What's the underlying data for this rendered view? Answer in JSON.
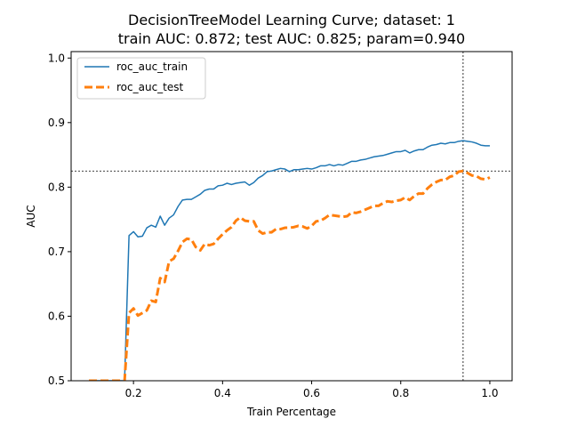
{
  "chart_data": {
    "type": "line",
    "title": [
      "DecisionTreeModel Learning Curve; dataset: 1",
      "train AUC: 0.872; test AUC: 0.825; param=0.940"
    ],
    "xlabel": "Train Percentage",
    "ylabel": "AUC",
    "xlim": [
      0.06,
      1.05
    ],
    "ylim": [
      0.5,
      1.01
    ],
    "xticks": [
      0.2,
      0.4,
      0.6,
      0.8,
      1.0
    ],
    "xtick_labels": [
      "0.2",
      "0.4",
      "0.6",
      "0.8",
      "1.0"
    ],
    "yticks": [
      0.5,
      0.6,
      0.7,
      0.8,
      0.9,
      1.0
    ],
    "ytick_labels": [
      "0.5",
      "0.6",
      "0.7",
      "0.8",
      "0.9",
      "1.0"
    ],
    "legend_position": "top-left",
    "reference_lines": {
      "vertical_x": 0.94,
      "horizontal_y": 0.825
    },
    "series": [
      {
        "name": "roc_auc_train",
        "color": "#1f77b4",
        "style": "solid",
        "points": [
          [
            0.1,
            0.5
          ],
          [
            0.11,
            0.5
          ],
          [
            0.12,
            0.5
          ],
          [
            0.13,
            0.5
          ],
          [
            0.14,
            0.5
          ],
          [
            0.15,
            0.5
          ],
          [
            0.16,
            0.5
          ],
          [
            0.17,
            0.5
          ],
          [
            0.18,
            0.5
          ],
          [
            0.19,
            0.725
          ],
          [
            0.2,
            0.731
          ],
          [
            0.21,
            0.723
          ],
          [
            0.22,
            0.724
          ],
          [
            0.23,
            0.737
          ],
          [
            0.24,
            0.741
          ],
          [
            0.25,
            0.738
          ],
          [
            0.26,
            0.755
          ],
          [
            0.27,
            0.741
          ],
          [
            0.28,
            0.752
          ],
          [
            0.29,
            0.757
          ],
          [
            0.3,
            0.77
          ],
          [
            0.31,
            0.78
          ],
          [
            0.32,
            0.781
          ],
          [
            0.33,
            0.781
          ],
          [
            0.34,
            0.785
          ],
          [
            0.35,
            0.789
          ],
          [
            0.36,
            0.795
          ],
          [
            0.37,
            0.797
          ],
          [
            0.38,
            0.797
          ],
          [
            0.39,
            0.802
          ],
          [
            0.4,
            0.803
          ],
          [
            0.41,
            0.806
          ],
          [
            0.42,
            0.804
          ],
          [
            0.43,
            0.806
          ],
          [
            0.44,
            0.807
          ],
          [
            0.45,
            0.808
          ],
          [
            0.46,
            0.803
          ],
          [
            0.47,
            0.807
          ],
          [
            0.48,
            0.814
          ],
          [
            0.49,
            0.818
          ],
          [
            0.5,
            0.824
          ],
          [
            0.51,
            0.825
          ],
          [
            0.52,
            0.827
          ],
          [
            0.53,
            0.829
          ],
          [
            0.54,
            0.828
          ],
          [
            0.55,
            0.824
          ],
          [
            0.56,
            0.827
          ],
          [
            0.57,
            0.827
          ],
          [
            0.58,
            0.828
          ],
          [
            0.59,
            0.829
          ],
          [
            0.6,
            0.828
          ],
          [
            0.61,
            0.83
          ],
          [
            0.62,
            0.833
          ],
          [
            0.63,
            0.833
          ],
          [
            0.64,
            0.835
          ],
          [
            0.65,
            0.833
          ],
          [
            0.66,
            0.835
          ],
          [
            0.67,
            0.834
          ],
          [
            0.68,
            0.837
          ],
          [
            0.69,
            0.84
          ],
          [
            0.7,
            0.84
          ],
          [
            0.71,
            0.842
          ],
          [
            0.72,
            0.843
          ],
          [
            0.73,
            0.845
          ],
          [
            0.74,
            0.847
          ],
          [
            0.75,
            0.848
          ],
          [
            0.76,
            0.849
          ],
          [
            0.77,
            0.851
          ],
          [
            0.78,
            0.853
          ],
          [
            0.79,
            0.855
          ],
          [
            0.8,
            0.855
          ],
          [
            0.81,
            0.857
          ],
          [
            0.82,
            0.853
          ],
          [
            0.83,
            0.856
          ],
          [
            0.84,
            0.858
          ],
          [
            0.85,
            0.858
          ],
          [
            0.86,
            0.862
          ],
          [
            0.87,
            0.865
          ],
          [
            0.88,
            0.866
          ],
          [
            0.89,
            0.868
          ],
          [
            0.9,
            0.867
          ],
          [
            0.91,
            0.869
          ],
          [
            0.92,
            0.869
          ],
          [
            0.93,
            0.871
          ],
          [
            0.94,
            0.872
          ],
          [
            0.95,
            0.871
          ],
          [
            0.96,
            0.87
          ],
          [
            0.97,
            0.868
          ],
          [
            0.98,
            0.865
          ],
          [
            0.99,
            0.864
          ],
          [
            1.0,
            0.864
          ]
        ]
      },
      {
        "name": "roc_auc_test",
        "color": "#ff7f0e",
        "style": "dashed",
        "points": [
          [
            0.1,
            0.5
          ],
          [
            0.11,
            0.5
          ],
          [
            0.12,
            0.5
          ],
          [
            0.13,
            0.5
          ],
          [
            0.14,
            0.5
          ],
          [
            0.15,
            0.5
          ],
          [
            0.16,
            0.5
          ],
          [
            0.17,
            0.5
          ],
          [
            0.18,
            0.5
          ],
          [
            0.19,
            0.605
          ],
          [
            0.2,
            0.612
          ],
          [
            0.21,
            0.601
          ],
          [
            0.22,
            0.605
          ],
          [
            0.23,
            0.609
          ],
          [
            0.24,
            0.624
          ],
          [
            0.25,
            0.622
          ],
          [
            0.26,
            0.659
          ],
          [
            0.27,
            0.653
          ],
          [
            0.28,
            0.685
          ],
          [
            0.29,
            0.689
          ],
          [
            0.3,
            0.701
          ],
          [
            0.31,
            0.715
          ],
          [
            0.32,
            0.72
          ],
          [
            0.33,
            0.719
          ],
          [
            0.34,
            0.707
          ],
          [
            0.35,
            0.702
          ],
          [
            0.36,
            0.712
          ],
          [
            0.37,
            0.71
          ],
          [
            0.38,
            0.712
          ],
          [
            0.39,
            0.72
          ],
          [
            0.4,
            0.727
          ],
          [
            0.41,
            0.733
          ],
          [
            0.42,
            0.738
          ],
          [
            0.43,
            0.748
          ],
          [
            0.44,
            0.753
          ],
          [
            0.45,
            0.748
          ],
          [
            0.46,
            0.747
          ],
          [
            0.47,
            0.747
          ],
          [
            0.48,
            0.733
          ],
          [
            0.49,
            0.728
          ],
          [
            0.5,
            0.73
          ],
          [
            0.51,
            0.73
          ],
          [
            0.52,
            0.735
          ],
          [
            0.53,
            0.735
          ],
          [
            0.54,
            0.737
          ],
          [
            0.55,
            0.737
          ],
          [
            0.56,
            0.738
          ],
          [
            0.57,
            0.74
          ],
          [
            0.58,
            0.739
          ],
          [
            0.59,
            0.736
          ],
          [
            0.6,
            0.74
          ],
          [
            0.61,
            0.747
          ],
          [
            0.62,
            0.748
          ],
          [
            0.63,
            0.752
          ],
          [
            0.64,
            0.757
          ],
          [
            0.65,
            0.756
          ],
          [
            0.66,
            0.755
          ],
          [
            0.67,
            0.754
          ],
          [
            0.68,
            0.755
          ],
          [
            0.69,
            0.761
          ],
          [
            0.7,
            0.76
          ],
          [
            0.71,
            0.762
          ],
          [
            0.72,
            0.765
          ],
          [
            0.73,
            0.768
          ],
          [
            0.74,
            0.771
          ],
          [
            0.75,
            0.771
          ],
          [
            0.76,
            0.775
          ],
          [
            0.77,
            0.778
          ],
          [
            0.78,
            0.777
          ],
          [
            0.79,
            0.779
          ],
          [
            0.8,
            0.78
          ],
          [
            0.81,
            0.784
          ],
          [
            0.82,
            0.78
          ],
          [
            0.83,
            0.786
          ],
          [
            0.84,
            0.79
          ],
          [
            0.85,
            0.79
          ],
          [
            0.86,
            0.798
          ],
          [
            0.87,
            0.804
          ],
          [
            0.88,
            0.808
          ],
          [
            0.89,
            0.811
          ],
          [
            0.9,
            0.811
          ],
          [
            0.91,
            0.816
          ],
          [
            0.92,
            0.818
          ],
          [
            0.93,
            0.824
          ],
          [
            0.94,
            0.825
          ],
          [
            0.95,
            0.822
          ],
          [
            0.96,
            0.818
          ],
          [
            0.97,
            0.817
          ],
          [
            0.98,
            0.813
          ],
          [
            0.99,
            0.812
          ],
          [
            1.0,
            0.815
          ]
        ]
      }
    ]
  }
}
